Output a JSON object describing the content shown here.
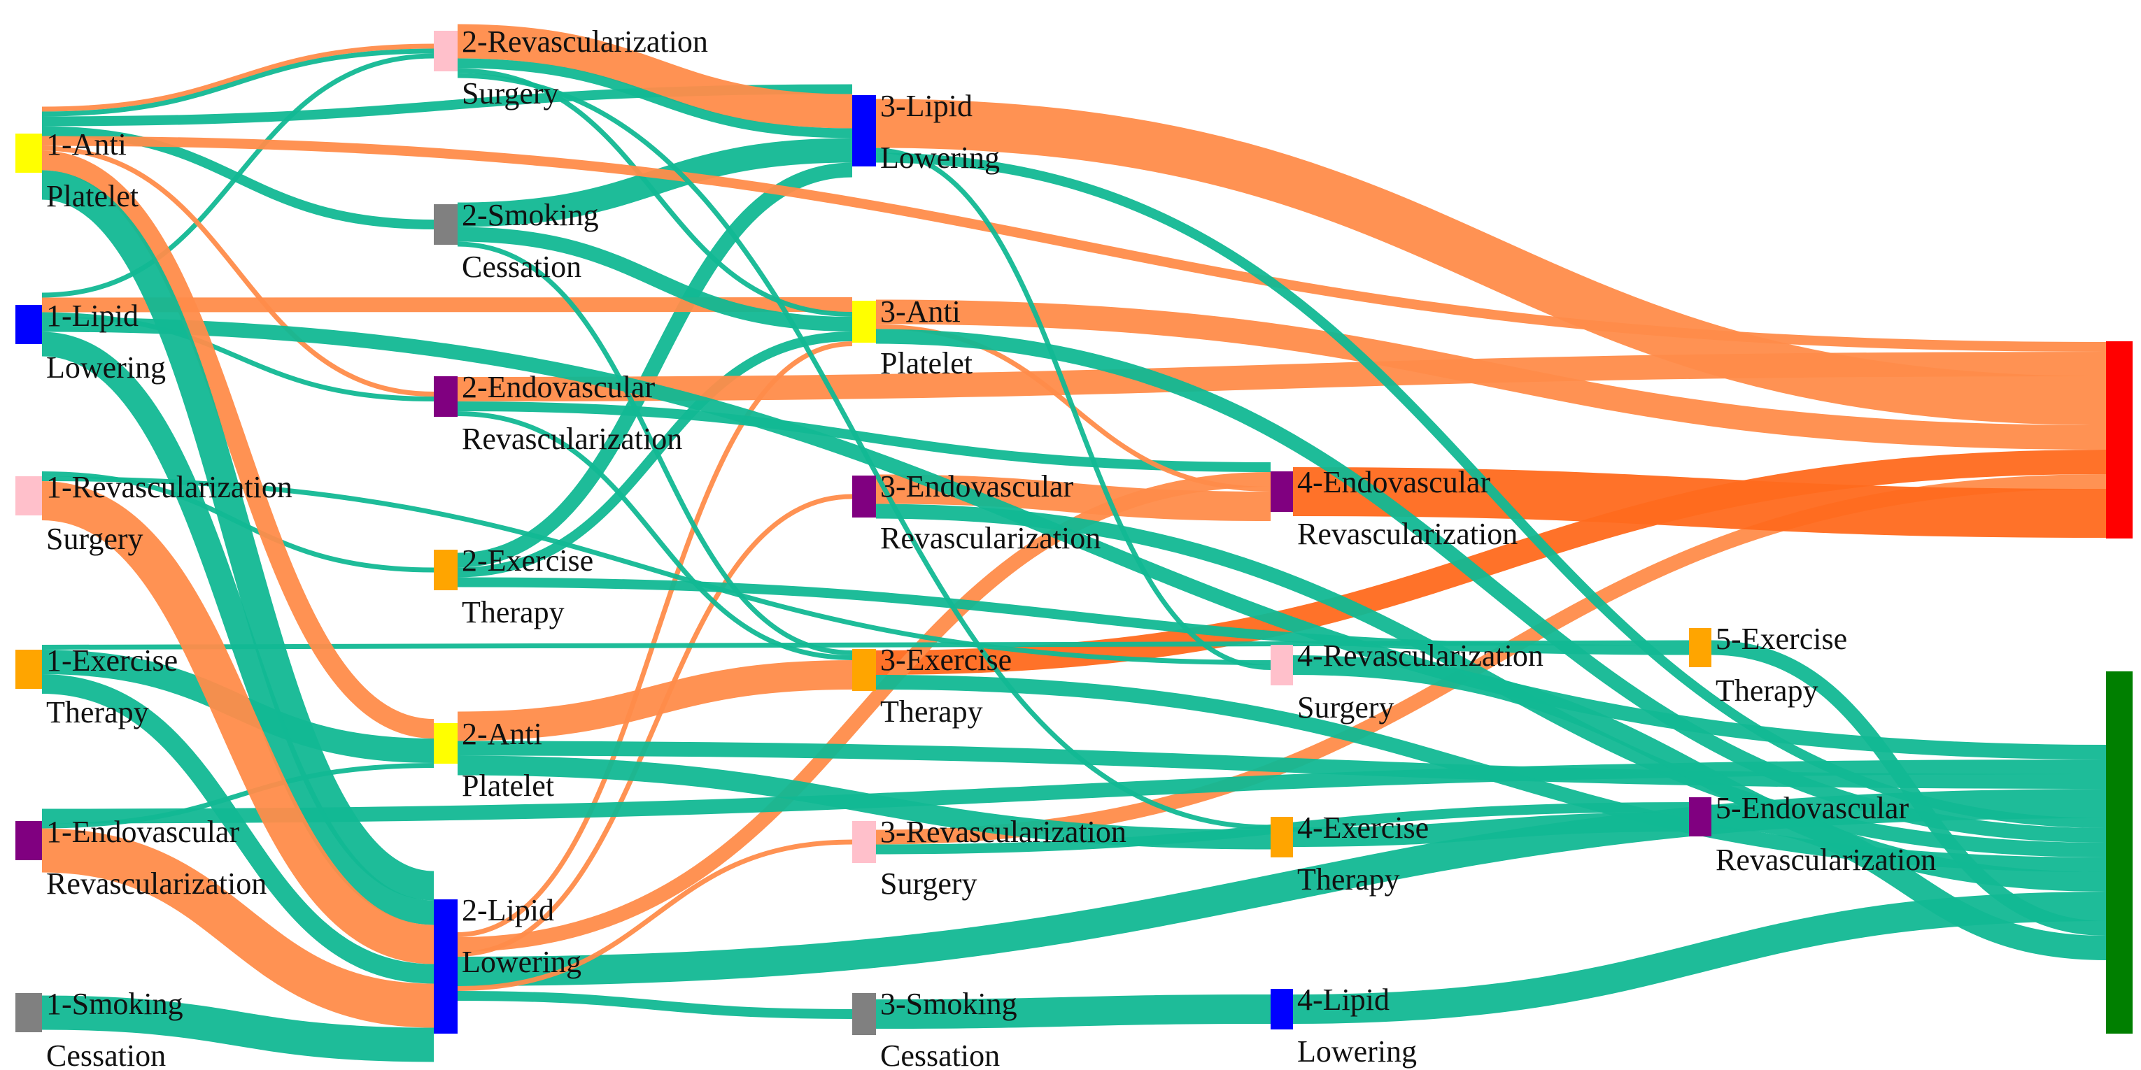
{
  "colors": {
    "link_teal": "#12b894",
    "link_orange": "#ff8c4a",
    "link_orange_dark": "#ff6a1e",
    "outcome_red": "#ff0000",
    "outcome_green": "#007f00"
  },
  "nodes": [
    {
      "id": "n1_ap",
      "step": 1,
      "lines": [
        "1-Anti",
        "Platelet"
      ],
      "color": "#ffff00"
    },
    {
      "id": "n1_ll",
      "step": 1,
      "lines": [
        "1-Lipid",
        "Lowering"
      ],
      "color": "#0000ff"
    },
    {
      "id": "n1_rs",
      "step": 1,
      "lines": [
        "1-Revascularization",
        "Surgery"
      ],
      "color": "#ffc0cb"
    },
    {
      "id": "n1_ex",
      "step": 1,
      "lines": [
        "1-Exercise",
        "Therapy"
      ],
      "color": "#ffa500"
    },
    {
      "id": "n1_ev",
      "step": 1,
      "lines": [
        "1-Endovascular",
        "Revascularization"
      ],
      "color": "#800080"
    },
    {
      "id": "n1_sc",
      "step": 1,
      "lines": [
        "1-Smoking",
        "Cessation"
      ],
      "color": "#808080"
    },
    {
      "id": "n2_rs",
      "step": 2,
      "lines": [
        "2-Revascularization",
        "Surgery"
      ],
      "color": "#ffc0cb"
    },
    {
      "id": "n2_sc",
      "step": 2,
      "lines": [
        "2-Smoking",
        "Cessation"
      ],
      "color": "#808080"
    },
    {
      "id": "n2_ev",
      "step": 2,
      "lines": [
        "2-Endovascular",
        "Revascularization"
      ],
      "color": "#800080"
    },
    {
      "id": "n2_ex",
      "step": 2,
      "lines": [
        "2-Exercise",
        "Therapy"
      ],
      "color": "#ffa500"
    },
    {
      "id": "n2_ap",
      "step": 2,
      "lines": [
        "2-Anti",
        "Platelet"
      ],
      "color": "#ffff00"
    },
    {
      "id": "n2_ll",
      "step": 2,
      "lines": [
        "2-Lipid",
        "Lowering"
      ],
      "color": "#0000ff"
    },
    {
      "id": "n3_ll",
      "step": 3,
      "lines": [
        "3-Lipid",
        "Lowering"
      ],
      "color": "#0000ff"
    },
    {
      "id": "n3_ap",
      "step": 3,
      "lines": [
        "3-Anti",
        "Platelet"
      ],
      "color": "#ffff00"
    },
    {
      "id": "n3_ev",
      "step": 3,
      "lines": [
        "3-Endovascular",
        "Revascularization"
      ],
      "color": "#800080"
    },
    {
      "id": "n3_ex",
      "step": 3,
      "lines": [
        "3-Exercise",
        "Therapy"
      ],
      "color": "#ffa500"
    },
    {
      "id": "n3_rs",
      "step": 3,
      "lines": [
        "3-Revascularization",
        "Surgery"
      ],
      "color": "#ffc0cb"
    },
    {
      "id": "n3_sc",
      "step": 3,
      "lines": [
        "3-Smoking",
        "Cessation"
      ],
      "color": "#808080"
    },
    {
      "id": "n4_ev",
      "step": 4,
      "lines": [
        "4-Endovascular",
        "Revascularization"
      ],
      "color": "#800080"
    },
    {
      "id": "n4_rs",
      "step": 4,
      "lines": [
        "4-Revascularization",
        "Surgery"
      ],
      "color": "#ffc0cb"
    },
    {
      "id": "n4_ex",
      "step": 4,
      "lines": [
        "4-Exercise",
        "Therapy"
      ],
      "color": "#ffa500"
    },
    {
      "id": "n4_ll",
      "step": 4,
      "lines": [
        "4-Lipid",
        "Lowering"
      ],
      "color": "#0000ff"
    },
    {
      "id": "n5_ex",
      "step": 5,
      "lines": [
        "5-Exercise",
        "Therapy"
      ],
      "color": "#ffa500"
    },
    {
      "id": "n5_ev",
      "step": 5,
      "lines": [
        "5-Endovascular",
        "Revascularization"
      ],
      "color": "#800080"
    },
    {
      "id": "out_red",
      "step": 6,
      "lines": [],
      "color": "#ff0000"
    },
    {
      "id": "out_green",
      "step": 6,
      "lines": [],
      "color": "#007f00"
    }
  ],
  "links": [
    {
      "source": "n1_ap",
      "target": "n2_rs",
      "value": 1,
      "kind": "orange"
    },
    {
      "source": "n1_ap",
      "target": "n2_rs",
      "value": 1,
      "kind": "teal"
    },
    {
      "source": "n1_ap",
      "target": "n2_sc",
      "value": 2,
      "kind": "teal"
    },
    {
      "source": "n1_ap",
      "target": "n2_ev",
      "value": 1,
      "kind": "orange"
    },
    {
      "source": "n1_ap",
      "target": "n2_ap",
      "value": 4,
      "kind": "orange"
    },
    {
      "source": "n1_ap",
      "target": "n2_ll",
      "value": 6,
      "kind": "teal"
    },
    {
      "source": "n1_ap",
      "target": "n3_ll",
      "value": 2,
      "kind": "teal"
    },
    {
      "source": "n1_ap",
      "target": "out_red",
      "value": 2,
      "kind": "orange"
    },
    {
      "source": "n1_ll",
      "target": "n3_ap",
      "value": 3,
      "kind": "orange"
    },
    {
      "source": "n1_ll",
      "target": "n2_ev",
      "value": 1,
      "kind": "teal"
    },
    {
      "source": "n1_ll",
      "target": "n2_ll",
      "value": 5,
      "kind": "teal"
    },
    {
      "source": "n1_ll",
      "target": "n2_rs",
      "value": 1,
      "kind": "teal"
    },
    {
      "source": "n1_ll",
      "target": "out_green",
      "value": 3,
      "kind": "teal"
    },
    {
      "source": "n1_rs",
      "target": "n2_ll",
      "value": 8,
      "kind": "orange"
    },
    {
      "source": "n1_rs",
      "target": "n2_ex",
      "value": 1,
      "kind": "teal"
    },
    {
      "source": "n1_rs",
      "target": "n4_rs",
      "value": 1,
      "kind": "teal"
    },
    {
      "source": "n1_ex",
      "target": "n2_ap",
      "value": 5,
      "kind": "teal"
    },
    {
      "source": "n1_ex",
      "target": "n2_ll",
      "value": 4,
      "kind": "teal"
    },
    {
      "source": "n1_ex",
      "target": "n5_ex",
      "value": 1,
      "kind": "teal"
    },
    {
      "source": "n1_ev",
      "target": "n2_ll",
      "value": 9,
      "kind": "orange"
    },
    {
      "source": "n1_ev",
      "target": "n2_ap",
      "value": 1,
      "kind": "teal"
    },
    {
      "source": "n1_ev",
      "target": "out_green",
      "value": 3,
      "kind": "teal"
    },
    {
      "source": "n1_sc",
      "target": "n2_ll",
      "value": 7,
      "kind": "teal"
    },
    {
      "source": "n2_rs",
      "target": "n3_ll",
      "value": 7,
      "kind": "orange"
    },
    {
      "source": "n2_rs",
      "target": "n3_ll",
      "value": 2,
      "kind": "teal"
    },
    {
      "source": "n2_rs",
      "target": "n3_ap",
      "value": 1,
      "kind": "teal"
    },
    {
      "source": "n2_rs",
      "target": "n4_ex",
      "value": 1,
      "kind": "teal"
    },
    {
      "source": "n2_sc",
      "target": "n3_ll",
      "value": 5,
      "kind": "teal"
    },
    {
      "source": "n2_sc",
      "target": "n3_ap",
      "value": 3,
      "kind": "teal"
    },
    {
      "source": "n2_sc",
      "target": "n3_ex",
      "value": 1,
      "kind": "teal"
    },
    {
      "source": "n2_ev",
      "target": "out_red",
      "value": 5,
      "kind": "orange"
    },
    {
      "source": "n2_ev",
      "target": "n4_ev",
      "value": 2,
      "kind": "teal"
    },
    {
      "source": "n2_ev",
      "target": "n3_ex",
      "value": 1,
      "kind": "teal"
    },
    {
      "source": "n2_ex",
      "target": "n3_ll",
      "value": 3,
      "kind": "teal"
    },
    {
      "source": "n2_ex",
      "target": "n3_ap",
      "value": 2,
      "kind": "teal"
    },
    {
      "source": "n2_ex",
      "target": "n5_ex",
      "value": 2,
      "kind": "teal"
    },
    {
      "source": "n2_ap",
      "target": "n3_ex",
      "value": 6,
      "kind": "orange"
    },
    {
      "source": "n2_ap",
      "target": "n4_ex",
      "value": 4,
      "kind": "teal"
    },
    {
      "source": "n2_ap",
      "target": "out_green",
      "value": 3,
      "kind": "teal"
    },
    {
      "source": "n2_ll",
      "target": "n3_ap",
      "value": 1,
      "kind": "orange"
    },
    {
      "source": "n2_ll",
      "target": "n3_ev",
      "value": 1,
      "kind": "orange"
    },
    {
      "source": "n2_ll",
      "target": "n3_rs",
      "value": 1,
      "kind": "orange"
    },
    {
      "source": "n2_ll",
      "target": "n4_ev",
      "value": 3,
      "kind": "orange"
    },
    {
      "source": "n2_ll",
      "target": "out_green",
      "value": 6,
      "kind": "teal"
    },
    {
      "source": "n2_ll",
      "target": "n3_sc",
      "value": 2,
      "kind": "teal"
    },
    {
      "source": "n3_ll",
      "target": "out_red",
      "value": 10,
      "kind": "orange"
    },
    {
      "source": "n3_ll",
      "target": "out_green",
      "value": 2,
      "kind": "teal"
    },
    {
      "source": "n3_ll",
      "target": "n4_rs",
      "value": 1,
      "kind": "teal"
    },
    {
      "source": "n3_ap",
      "target": "out_red",
      "value": 5,
      "kind": "orange"
    },
    {
      "source": "n3_ap",
      "target": "n4_ev",
      "value": 1,
      "kind": "orange"
    },
    {
      "source": "n3_ap",
      "target": "out_green",
      "value": 3,
      "kind": "teal"
    },
    {
      "source": "n3_ev",
      "target": "n4_ev",
      "value": 6,
      "kind": "orange"
    },
    {
      "source": "n3_ev",
      "target": "out_green",
      "value": 3,
      "kind": "teal"
    },
    {
      "source": "n3_ex",
      "target": "out_red",
      "value": 5,
      "kind": "orange_dark"
    },
    {
      "source": "n3_ex",
      "target": "out_green",
      "value": 3,
      "kind": "teal"
    },
    {
      "source": "n3_rs",
      "target": "out_red",
      "value": 3,
      "kind": "orange"
    },
    {
      "source": "n3_rs",
      "target": "n5_ev",
      "value": 2,
      "kind": "teal"
    },
    {
      "source": "n3_sc",
      "target": "n4_ll",
      "value": 6,
      "kind": "teal"
    },
    {
      "source": "n4_ev",
      "target": "out_red",
      "value": 10,
      "kind": "orange_dark"
    },
    {
      "source": "n4_rs",
      "target": "out_green",
      "value": 4,
      "kind": "teal"
    },
    {
      "source": "n4_ex",
      "target": "n5_ev",
      "value": 4,
      "kind": "teal"
    },
    {
      "source": "n4_ll",
      "target": "out_green",
      "value": 6,
      "kind": "teal"
    },
    {
      "source": "n5_ex",
      "target": "out_green",
      "value": 3,
      "kind": "teal"
    },
    {
      "source": "n5_ev",
      "target": "out_green",
      "value": 5,
      "kind": "teal"
    }
  ]
}
